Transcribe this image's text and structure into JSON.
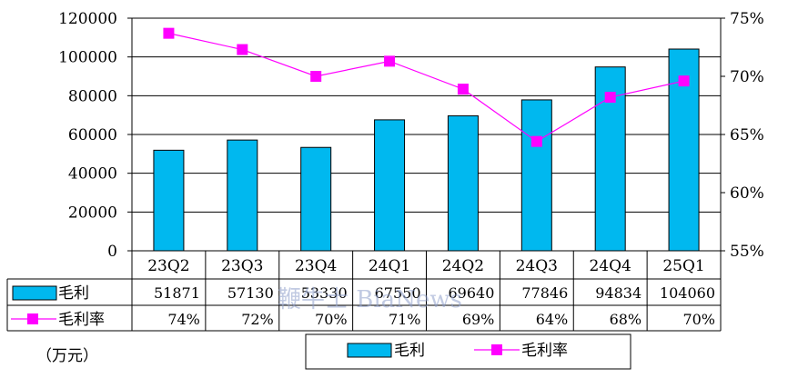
{
  "chart_data": {
    "type": "bar",
    "categories": [
      "23Q2",
      "23Q3",
      "23Q4",
      "24Q1",
      "24Q2",
      "24Q3",
      "24Q4",
      "25Q1"
    ],
    "series": [
      {
        "name": "毛利",
        "type": "bar",
        "axis": "left",
        "values": [
          51871,
          57130,
          53330,
          67550,
          69640,
          77846,
          94834,
          104060
        ],
        "labels": [
          "51871",
          "57130",
          "53330",
          "67550",
          "69640",
          "77846",
          "94834",
          "104060"
        ],
        "color": "#00b8ef"
      },
      {
        "name": "毛利率",
        "type": "line",
        "axis": "right",
        "values": [
          73.7,
          72.3,
          70.0,
          71.3,
          68.9,
          64.4,
          68.2,
          69.6
        ],
        "labels": [
          "74%",
          "72%",
          "70%",
          "71%",
          "69%",
          "64%",
          "68%",
          "70%"
        ],
        "color": "#ff00ff"
      }
    ],
    "ylim": [
      0,
      120000
    ],
    "yticks": [
      "0",
      "20000",
      "40000",
      "60000",
      "80000",
      "100000",
      "120000"
    ],
    "ylim_right": [
      55,
      75
    ],
    "yticks_right": [
      "55%",
      "60%",
      "65%",
      "70%",
      "75%"
    ],
    "grid": true,
    "unit_note": "（万元）",
    "legend": [
      "毛利",
      "毛利率"
    ],
    "legend_position": "bottom"
  },
  "watermark": "鞭牛士 BiaNews"
}
